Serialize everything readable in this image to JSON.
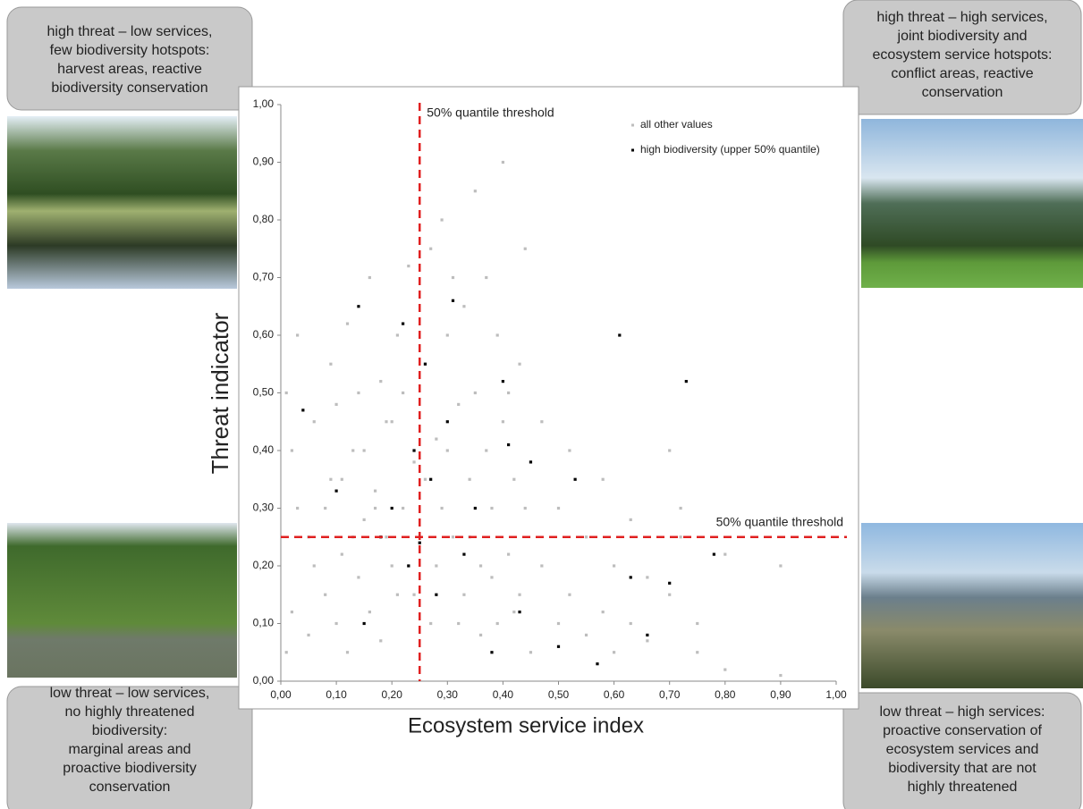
{
  "chart_data": {
    "type": "scatter",
    "xlabel": "Ecosystem service index",
    "ylabel": "Threat indicator",
    "xlim": [
      0,
      1
    ],
    "ylim": [
      0,
      1
    ],
    "xticks": [
      {
        "value": 0,
        "label": "0,00"
      },
      {
        "value": 0.1,
        "label": "0,10"
      },
      {
        "value": 0.2,
        "label": "0,20"
      },
      {
        "value": 0.3,
        "label": "0,30"
      },
      {
        "value": 0.4,
        "label": "0,40"
      },
      {
        "value": 0.5,
        "label": "0,50"
      },
      {
        "value": 0.6,
        "label": "0,60"
      },
      {
        "value": 0.7,
        "label": "0,70"
      },
      {
        "value": 0.8,
        "label": "0,80"
      },
      {
        "value": 0.9,
        "label": "0,90"
      },
      {
        "value": 1,
        "label": "1,00"
      }
    ],
    "yticks": [
      {
        "value": 0,
        "label": "0,00"
      },
      {
        "value": 0.1,
        "label": "0,10"
      },
      {
        "value": 0.2,
        "label": "0,20"
      },
      {
        "value": 0.3,
        "label": "0,30"
      },
      {
        "value": 0.4,
        "label": "0,40"
      },
      {
        "value": 0.5,
        "label": "0,50"
      },
      {
        "value": 0.6,
        "label": "0,60"
      },
      {
        "value": 0.7,
        "label": "0,70"
      },
      {
        "value": 0.8,
        "label": "0,80"
      },
      {
        "value": 0.9,
        "label": "0,90"
      },
      {
        "value": 1,
        "label": "1,00"
      }
    ],
    "grid": false,
    "series": [
      {
        "name": "all other values",
        "color": "#bdbdbd",
        "x": [
          0.01,
          0.02,
          0.03,
          0.05,
          0.06,
          0.08,
          0.09,
          0.1,
          0.11,
          0.12,
          0.13,
          0.14,
          0.15,
          0.16,
          0.17,
          0.18,
          0.19,
          0.2,
          0.21,
          0.22,
          0.23,
          0.24,
          0.26,
          0.27,
          0.28,
          0.29,
          0.3,
          0.31,
          0.32,
          0.33,
          0.34,
          0.35,
          0.36,
          0.37,
          0.38,
          0.39,
          0.4,
          0.41,
          0.42,
          0.43,
          0.44,
          0.45,
          0.47,
          0.5,
          0.52,
          0.55,
          0.58,
          0.6,
          0.63,
          0.66,
          0.7,
          0.72,
          0.75,
          0.8,
          0.9,
          0.01,
          0.02,
          0.03,
          0.05,
          0.06,
          0.08,
          0.09,
          0.1,
          0.11,
          0.12,
          0.13,
          0.14,
          0.15,
          0.16,
          0.17,
          0.18,
          0.19,
          0.2,
          0.21,
          0.22,
          0.23,
          0.24,
          0.26,
          0.27,
          0.28,
          0.29,
          0.3,
          0.31,
          0.32,
          0.33,
          0.34,
          0.35,
          0.36,
          0.37,
          0.38,
          0.39,
          0.4,
          0.41,
          0.42,
          0.43,
          0.44,
          0.45,
          0.47,
          0.5,
          0.52,
          0.55,
          0.58,
          0.6,
          0.63,
          0.66,
          0.7,
          0.72,
          0.75,
          0.8,
          0.9
        ],
        "values": [
          0.05,
          0.12,
          0.3,
          0.08,
          0.2,
          0.15,
          0.35,
          0.1,
          0.22,
          0.05,
          0.4,
          0.18,
          0.28,
          0.12,
          0.33,
          0.07,
          0.25,
          0.45,
          0.15,
          0.3,
          0.2,
          0.38,
          0.55,
          0.1,
          0.42,
          0.3,
          0.6,
          0.25,
          0.48,
          0.15,
          0.35,
          0.5,
          0.2,
          0.4,
          0.3,
          0.1,
          0.45,
          0.22,
          0.35,
          0.15,
          0.3,
          0.05,
          0.2,
          0.1,
          0.15,
          0.08,
          0.12,
          0.05,
          0.1,
          0.07,
          0.15,
          0.3,
          0.1,
          0.22,
          0.2,
          0.5,
          0.4,
          0.6,
          0.25,
          0.45,
          0.3,
          0.55,
          0.48,
          0.35,
          0.62,
          0.25,
          0.5,
          0.4,
          0.7,
          0.3,
          0.52,
          0.45,
          0.2,
          0.6,
          0.5,
          0.72,
          0.15,
          0.35,
          0.75,
          0.2,
          0.8,
          0.4,
          0.7,
          0.1,
          0.65,
          0.25,
          0.85,
          0.08,
          0.7,
          0.18,
          0.6,
          0.9,
          0.5,
          0.12,
          0.55,
          0.75,
          0.38,
          0.45,
          0.3,
          0.4,
          0.25,
          0.35,
          0.2,
          0.28,
          0.18,
          0.4,
          0.25,
          0.05,
          0.02,
          0.01
        ]
      },
      {
        "name": "high biodiversity (upper 50% quantile)",
        "color": "#000000",
        "x": [
          0.04,
          0.1,
          0.14,
          0.15,
          0.18,
          0.2,
          0.22,
          0.23,
          0.24,
          0.25,
          0.26,
          0.27,
          0.28,
          0.3,
          0.31,
          0.33,
          0.35,
          0.38,
          0.4,
          0.41,
          0.43,
          0.45,
          0.5,
          0.53,
          0.57,
          0.61,
          0.63,
          0.66,
          0.7,
          0.73,
          0.78
        ],
        "values": [
          0.47,
          0.33,
          0.65,
          0.1,
          0.25,
          0.3,
          0.62,
          0.2,
          0.4,
          0.24,
          0.55,
          0.35,
          0.15,
          0.45,
          0.66,
          0.22,
          0.3,
          0.05,
          0.52,
          0.41,
          0.12,
          0.38,
          0.06,
          0.35,
          0.03,
          0.6,
          0.18,
          0.08,
          0.17,
          0.52,
          0.22
        ]
      }
    ],
    "thresholds": {
      "x": 0.25,
      "y": 0.25,
      "color": "#e02020",
      "x_label": "50% quantile threshold",
      "y_label": "50% quantile threshold"
    },
    "quadrant_labels": [
      [
        "high threat – low services,",
        "few biodiversity hotspots:",
        "harvest areas, reactive",
        "biodiversity conservation"
      ],
      [
        "high threat – high services,",
        "joint biodiversity and",
        "ecosystem service hotspots:",
        "conflict areas, reactive",
        "conservation"
      ],
      [
        "low threat – low services,",
        "no highly threatened",
        "biodiversity:",
        "marginal areas and",
        "proactive biodiversity",
        "conservation"
      ],
      [
        "low threat – high services:",
        "proactive conservation of",
        "ecosystem services and",
        "biodiversity that are not",
        "highly threatened"
      ]
    ]
  }
}
